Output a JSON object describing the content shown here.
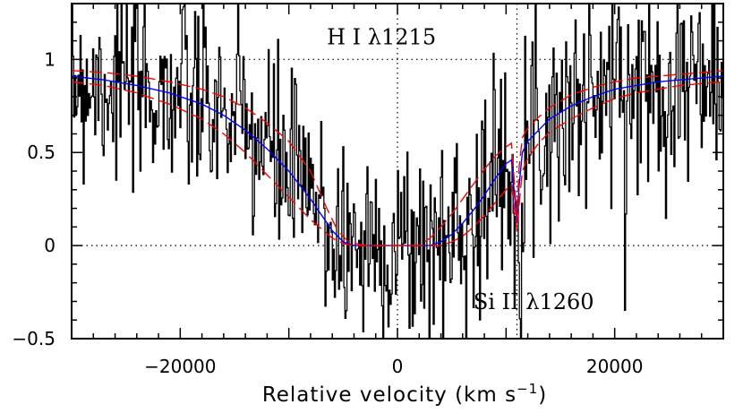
{
  "chart_data": {
    "type": "line",
    "title": "",
    "xlabel": "Relative velocity (km s",
    "xlabel_sup": "−1",
    "xlabel_close": ")",
    "ylabel": "",
    "xlim": [
      -30000,
      30000
    ],
    "ylim": [
      -0.5,
      1.3
    ],
    "xticks": [
      -20000,
      0,
      20000
    ],
    "xtick_labels": [
      "−20000",
      "0",
      "20000"
    ],
    "yticks": [
      -0.5,
      0,
      0.5,
      1
    ],
    "ytick_labels": [
      "−0.5",
      "0",
      "0.5",
      "1"
    ],
    "reference_lines": {
      "horizontal": [
        0,
        1
      ],
      "vertical": [
        0,
        11000
      ]
    },
    "annotations": [
      {
        "text": "H  I  λ1215",
        "x": -6500,
        "y": 1.08
      },
      {
        "text": "Si  II  λ1260",
        "x": 7000,
        "y": -0.34
      }
    ],
    "series": [
      {
        "name": "observed flux",
        "color": "#000000",
        "style": "histogram",
        "noise_sigma": 0.28,
        "n_pixels": 620,
        "seed": 7
      },
      {
        "name": "best-fit model",
        "color": "#0000ff",
        "style": "solid",
        "x": [
          -30000,
          -27000,
          -24000,
          -21000,
          -18000,
          -16000,
          -14000,
          -12000,
          -10000,
          -8000,
          -6000,
          -5000,
          -4000,
          -2000,
          0,
          2000,
          3000,
          4000,
          5000,
          6000,
          7000,
          8000,
          9000,
          10000,
          10500,
          11000,
          11200,
          11500,
          12000,
          13000,
          14000,
          16000,
          18000,
          20000,
          22000,
          24000,
          26000,
          28000,
          30000
        ],
        "values": [
          0.91,
          0.89,
          0.86,
          0.82,
          0.76,
          0.7,
          0.62,
          0.52,
          0.4,
          0.25,
          0.08,
          0.02,
          0.0,
          0.0,
          0.0,
          0.0,
          0.0,
          0.02,
          0.06,
          0.12,
          0.19,
          0.27,
          0.36,
          0.44,
          0.46,
          0.12,
          0.32,
          0.5,
          0.56,
          0.62,
          0.68,
          0.75,
          0.8,
          0.84,
          0.86,
          0.88,
          0.89,
          0.9,
          0.91
        ]
      },
      {
        "name": "model upper bound",
        "color": "#ff0000",
        "style": "dashed",
        "x": [
          -30000,
          -27000,
          -24000,
          -21000,
          -18000,
          -16000,
          -14000,
          -12000,
          -10000,
          -8000,
          -6500,
          -5500,
          -4500,
          -3000,
          0,
          2000,
          3000,
          4000,
          5000,
          6000,
          7000,
          8000,
          9000,
          10000,
          10500,
          11000,
          11200,
          11500,
          12000,
          13000,
          14000,
          16000,
          18000,
          20000,
          22000,
          24000,
          26000,
          28000,
          30000
        ],
        "values": [
          0.94,
          0.93,
          0.91,
          0.88,
          0.84,
          0.8,
          0.74,
          0.66,
          0.56,
          0.4,
          0.2,
          0.08,
          0.02,
          0.0,
          0.0,
          0.0,
          0.04,
          0.1,
          0.17,
          0.25,
          0.33,
          0.41,
          0.48,
          0.53,
          0.55,
          0.15,
          0.42,
          0.58,
          0.63,
          0.69,
          0.74,
          0.81,
          0.85,
          0.88,
          0.9,
          0.91,
          0.92,
          0.93,
          0.94
        ]
      },
      {
        "name": "model lower bound",
        "color": "#ff0000",
        "style": "dashed",
        "x": [
          -30000,
          -27000,
          -24000,
          -21000,
          -18000,
          -16000,
          -14000,
          -12000,
          -10000,
          -8000,
          -6000,
          -5000,
          -4000,
          -2000,
          0,
          2000,
          4000,
          5000,
          6000,
          7000,
          8000,
          9000,
          10000,
          10500,
          11000,
          11200,
          11500,
          12000,
          13000,
          14000,
          16000,
          18000,
          20000,
          22000,
          24000,
          26000,
          28000,
          30000
        ],
        "values": [
          0.88,
          0.86,
          0.82,
          0.76,
          0.68,
          0.6,
          0.5,
          0.38,
          0.26,
          0.14,
          0.04,
          0.01,
          0.0,
          0.0,
          0.0,
          0.0,
          0.0,
          0.02,
          0.05,
          0.1,
          0.16,
          0.23,
          0.3,
          0.33,
          0.08,
          0.22,
          0.4,
          0.47,
          0.55,
          0.61,
          0.68,
          0.74,
          0.79,
          0.82,
          0.84,
          0.86,
          0.87,
          0.88
        ]
      }
    ]
  }
}
